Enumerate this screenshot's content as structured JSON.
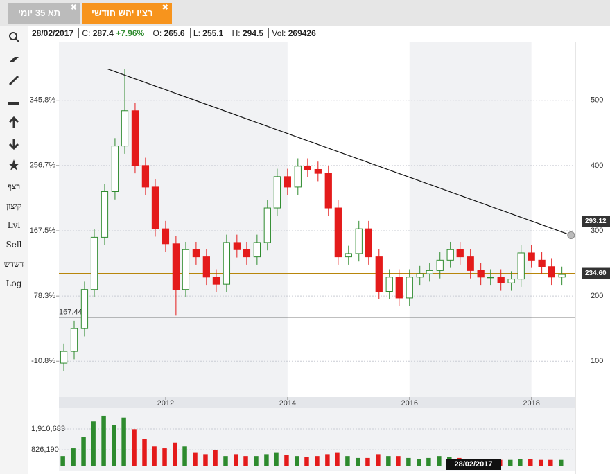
{
  "tabs": [
    "תא 35 יומי",
    "רציו יהש חודשי"
  ],
  "info": {
    "date": "28/02/2017",
    "close_label": "C:",
    "close": 287.4,
    "change": "+7.96%",
    "open_label": "O:",
    "open": 265.6,
    "low_label": "L:",
    "low": 255.1,
    "high_label": "H:",
    "high": 294.5,
    "vol_label": "Vol:",
    "vol": 269426
  },
  "toolbar": [
    "רצף",
    "קיצון",
    "Lvl",
    "Sell",
    "דשדש",
    "Log"
  ],
  "chart_data": {
    "type": "candlestick",
    "x": [
      2010.33,
      2010.5,
      2010.67,
      2010.83,
      2011,
      2011.17,
      2011.33,
      2011.5,
      2011.67,
      2011.83,
      2012,
      2012.17,
      2012.33,
      2012.5,
      2012.67,
      2012.83,
      2013,
      2013.17,
      2013.33,
      2013.5,
      2013.67,
      2013.83,
      2014,
      2014.17,
      2014.33,
      2014.5,
      2014.67,
      2014.83,
      2015,
      2015.17,
      2015.33,
      2015.5,
      2015.67,
      2015.83,
      2016,
      2016.17,
      2016.33,
      2016.5,
      2016.67,
      2016.83,
      2017,
      2017.17,
      2017.33,
      2017.5,
      2017.67,
      2017.83,
      2018,
      2018.17,
      2018.33,
      2018.5
    ],
    "open": [
      97,
      115,
      150,
      210,
      290,
      360,
      430,
      484,
      400,
      367,
      303,
      280,
      210,
      271,
      260,
      229,
      218,
      282,
      271,
      260,
      282,
      335,
      383,
      367,
      399,
      394,
      388,
      335,
      260,
      265,
      303,
      260,
      207,
      229,
      197,
      229,
      234,
      239,
      255,
      271,
      260,
      239,
      229,
      229,
      220,
      226,
      266,
      255,
      245,
      229
    ],
    "high": [
      127,
      162,
      222,
      302,
      372,
      442,
      548,
      496,
      412,
      379,
      315,
      292,
      283,
      283,
      272,
      241,
      294,
      294,
      283,
      294,
      347,
      395,
      395,
      411,
      411,
      406,
      400,
      347,
      277,
      315,
      315,
      272,
      241,
      241,
      241,
      246,
      251,
      267,
      283,
      283,
      272,
      251,
      241,
      241,
      238,
      278,
      278,
      267,
      257,
      245
    ],
    "low": [
      85,
      103,
      138,
      198,
      278,
      348,
      418,
      388,
      355,
      291,
      268,
      170,
      198,
      248,
      217,
      206,
      206,
      259,
      248,
      248,
      270,
      323,
      355,
      355,
      382,
      376,
      323,
      248,
      248,
      253,
      248,
      195,
      195,
      185,
      185,
      217,
      222,
      227,
      243,
      248,
      227,
      217,
      217,
      208,
      208,
      214,
      243,
      233,
      217,
      217
    ],
    "close": [
      115,
      150,
      210,
      290,
      360,
      430,
      484,
      400,
      367,
      303,
      280,
      210,
      271,
      260,
      229,
      218,
      282,
      271,
      260,
      282,
      335,
      383,
      367,
      399,
      394,
      388,
      335,
      260,
      265,
      303,
      260,
      207,
      229,
      197,
      229,
      234,
      239,
      255,
      271,
      260,
      239,
      229,
      229,
      220,
      226,
      266,
      255,
      245,
      229,
      233
    ],
    "volume": [
      500000,
      900000,
      1500000,
      2300000,
      2600000,
      2100000,
      2500000,
      1900000,
      1400000,
      1000000,
      900000,
      1200000,
      1000000,
      700000,
      600000,
      800000,
      500000,
      600000,
      500000,
      500000,
      600000,
      700000,
      550000,
      500000,
      450000,
      500000,
      600000,
      700000,
      500000,
      400000,
      400000,
      600000,
      500000,
      500000,
      400000,
      350000,
      400000,
      500000,
      450000,
      400000,
      350000,
      300000,
      350000,
      300000,
      300000,
      350000,
      350000,
      300000,
      300000,
      300000
    ],
    "up_color": "#2e8b2e",
    "down_color": "#e41b1b",
    "xlim": [
      2010.25,
      2018.72
    ],
    "xticks": [
      2012,
      2014,
      2016,
      2018
    ],
    "ylim": [
      45,
      590
    ],
    "yticks": [
      100,
      200,
      300,
      400,
      500
    ],
    "y2lim": [
      -59.8,
      426.0
    ],
    "y2ticks": [
      {
        "value": -10.8,
        "label": "-10.8%"
      },
      {
        "value": 78.3,
        "label": "78.3%"
      },
      {
        "value": 167.5,
        "label": "167.5%"
      },
      {
        "value": 256.7,
        "label": "256.7%"
      },
      {
        "value": 345.8,
        "label": "345.8%"
      }
    ],
    "volume_lim": [
      0,
      2670000
    ],
    "volume_ticks": [
      {
        "value": 826190,
        "label": "826,190"
      },
      {
        "value": 1910683,
        "label": "1,910,683"
      }
    ],
    "trendline": {
      "x": [
        2011.05,
        2018.65
      ],
      "y": [
        548,
        293.12
      ]
    },
    "hlines": [
      {
        "value": 234.6,
        "label": "234.60",
        "color": "#b8860b"
      },
      {
        "value": 167.44,
        "color": "#000000"
      }
    ],
    "date_badge": "28/02/2017"
  }
}
